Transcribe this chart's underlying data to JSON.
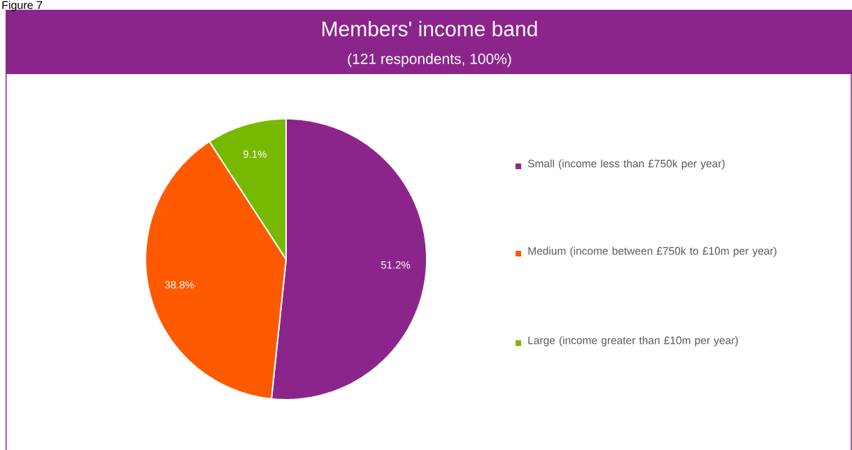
{
  "chart_data": {
    "type": "pie",
    "title": "Members' income band",
    "subtitle": "(121 respondents, 100%)",
    "annotations": [
      "Figure 7"
    ],
    "categories": [
      "Small (income less than £750k per year)",
      "Medium (income between £750k to £10m per year)",
      "Large (income greater than £10m per year)"
    ],
    "values": [
      51.2,
      38.8,
      9.1
    ],
    "colors": [
      "#8b258b",
      "#ff5a00",
      "#77b900"
    ],
    "value_labels": [
      "51.2%",
      "38.8%",
      "9.1%"
    ],
    "legend": "right"
  }
}
